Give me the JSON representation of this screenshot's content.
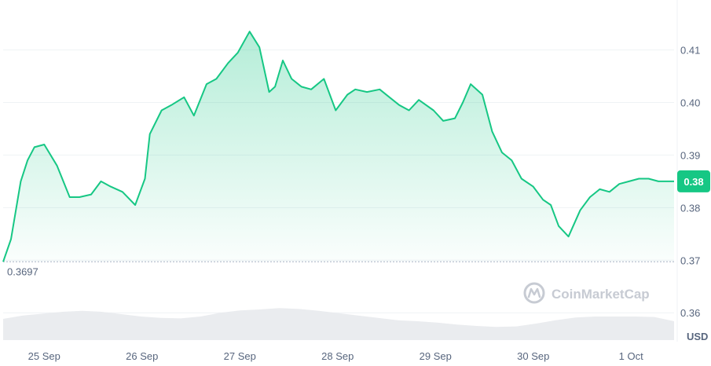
{
  "watermark": {
    "brand": "CoinMarketCap"
  },
  "colors": {
    "line": "#16c784",
    "fill_top": "#16c784",
    "grid": "#eff2f5",
    "volume": "#eaecef",
    "axis_text": "#58667e"
  },
  "chart_data": {
    "type": "area",
    "currency_label": "USD",
    "x_ticks": [
      "25 Sep",
      "26 Sep",
      "27 Sep",
      "28 Sep",
      "29 Sep",
      "30 Sep",
      "1 Oct"
    ],
    "y_ticks": [
      "0.41",
      "0.40",
      "0.39",
      "0.38",
      "0.37",
      "0.36"
    ],
    "ylim": [
      0.3545,
      0.4195
    ],
    "xlim": [
      0,
      6.86
    ],
    "grid": true,
    "open_price": 0.3697,
    "open_price_label": "0.3697",
    "current_price": 0.385,
    "current_price_label": "0.38",
    "series": [
      {
        "x": [
          0.0,
          0.08,
          0.18,
          0.25,
          0.32,
          0.42,
          0.55,
          0.68,
          0.78,
          0.9,
          1.0,
          1.1,
          1.22,
          1.35,
          1.45,
          1.5,
          1.62,
          1.72,
          1.85,
          1.95,
          2.08,
          2.18,
          2.3,
          2.4,
          2.52,
          2.62,
          2.72,
          2.78,
          2.86,
          2.95,
          3.05,
          3.15,
          3.28,
          3.4,
          3.52,
          3.6,
          3.72,
          3.85,
          3.95,
          4.05,
          4.15,
          4.25,
          4.4,
          4.5,
          4.62,
          4.7,
          4.78,
          4.9,
          5.0,
          5.1,
          5.2,
          5.3,
          5.42,
          5.52,
          5.6,
          5.68,
          5.78,
          5.9,
          6.0,
          6.1,
          6.2,
          6.3,
          6.4,
          6.5,
          6.6,
          6.7,
          6.78,
          6.86
        ],
        "y": [
          0.3697,
          0.374,
          0.385,
          0.389,
          0.3915,
          0.392,
          0.388,
          0.382,
          0.382,
          0.3825,
          0.385,
          0.384,
          0.383,
          0.3805,
          0.3855,
          0.394,
          0.3985,
          0.3995,
          0.401,
          0.3975,
          0.4035,
          0.4045,
          0.4075,
          0.4095,
          0.4135,
          0.4105,
          0.402,
          0.403,
          0.408,
          0.4045,
          0.403,
          0.4025,
          0.4045,
          0.3985,
          0.4015,
          0.4025,
          0.402,
          0.4025,
          0.401,
          0.3995,
          0.3985,
          0.4005,
          0.3985,
          0.3965,
          0.397,
          0.4,
          0.4035,
          0.4015,
          0.3945,
          0.3905,
          0.389,
          0.3855,
          0.384,
          0.3815,
          0.3805,
          0.3765,
          0.3745,
          0.3795,
          0.382,
          0.3835,
          0.383,
          0.3845,
          0.385,
          0.3855,
          0.3855,
          0.385,
          0.385,
          0.385
        ]
      }
    ],
    "volume": [
      0.45,
      0.52,
      0.56,
      0.6,
      0.62,
      0.6,
      0.55,
      0.5,
      0.47,
      0.46,
      0.5,
      0.58,
      0.63,
      0.65,
      0.68,
      0.66,
      0.62,
      0.57,
      0.52,
      0.47,
      0.42,
      0.4,
      0.37,
      0.33,
      0.3,
      0.28,
      0.29,
      0.35,
      0.42,
      0.48,
      0.5,
      0.5,
      0.5,
      0.49,
      0.4
    ]
  }
}
